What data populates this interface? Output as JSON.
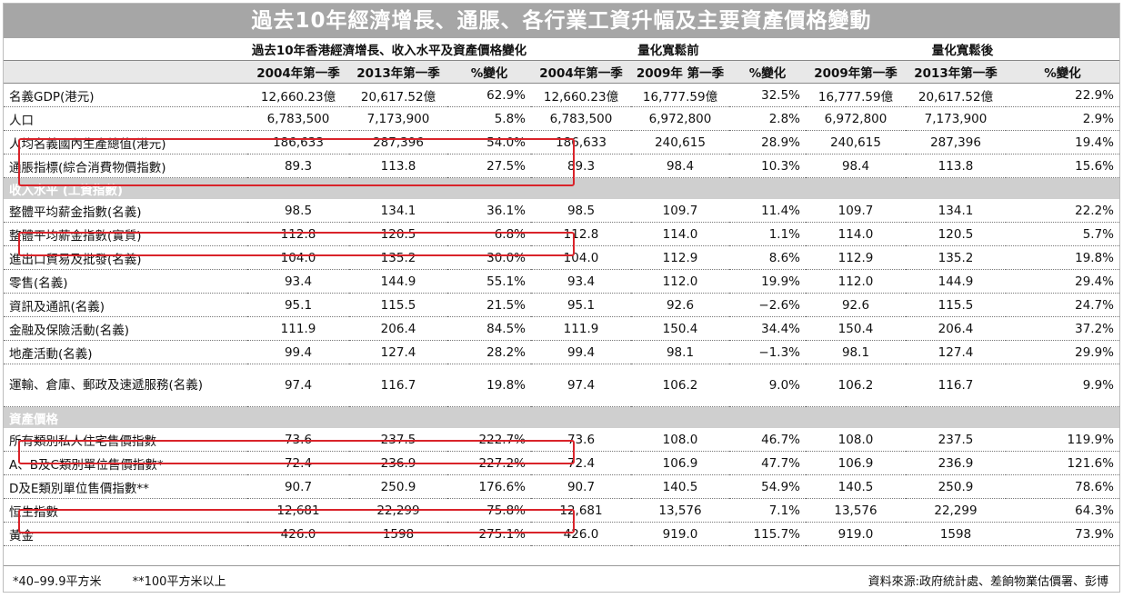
{
  "title": "過去10年經濟增長、通脹、各行業工資升幅及主要資產價格變動",
  "group_headers": [
    "過去10年香港經濟增長、收入水平及資產價格變化",
    "量化寬鬆前",
    "量化寬鬆後"
  ],
  "sub_headers": [
    "2004年第一季",
    "2013年第一季",
    "%變化",
    "2004年第一季",
    "2009年 第一季",
    "%變化",
    "2009年第一季",
    "2013年第一季",
    "%變化"
  ],
  "rows_top": [
    {
      "label": "名義GDP(港元)",
      "cells": [
        "12,660.23億",
        "20,617.52億",
        "62.9%",
        "12,660.23億",
        "16,777.59億",
        "32.5%",
        "16,777.59億",
        "20,617.52億",
        "22.9%"
      ]
    },
    {
      "label": "人口",
      "cells": [
        "6,783,500",
        "7,173,900",
        "5.8%",
        "6,783,500",
        "6,972,800",
        "2.8%",
        "6,972,800",
        "7,173,900",
        "2.9%"
      ]
    },
    {
      "label": "人均名義國內生產總值(港元)",
      "cells": [
        "186,633",
        "287,396",
        "54.0%",
        "186,633",
        "240,615",
        "28.9%",
        "240,615",
        "287,396",
        "19.4%"
      ]
    },
    {
      "label": "通脹指標(綜合消費物價指數)",
      "cells": [
        "89.3",
        "113.8",
        "27.5%",
        "89.3",
        "98.4",
        "10.3%",
        "98.4",
        "113.8",
        "15.6%"
      ]
    }
  ],
  "section_income": "收入水平 (工資指數)",
  "rows_income": [
    {
      "label": "整體平均薪金指數(名義)",
      "cells": [
        "98.5",
        "134.1",
        "36.1%",
        "98.5",
        "109.7",
        "11.4%",
        "109.7",
        "134.1",
        "22.2%"
      ]
    },
    {
      "label": "整體平均薪金指數(實質)",
      "cells": [
        "112.8",
        "120.5",
        "6.8%",
        "112.8",
        "114.0",
        "1.1%",
        "114.0",
        "120.5",
        "5.7%"
      ]
    },
    {
      "label": "進出口貿易及批發(名義)",
      "cells": [
        "104.0",
        "135.2",
        "30.0%",
        "104.0",
        "112.9",
        "8.6%",
        "112.9",
        "135.2",
        "19.8%"
      ]
    },
    {
      "label": "零售(名義)",
      "cells": [
        "93.4",
        "144.9",
        "55.1%",
        "93.4",
        "112.0",
        "19.9%",
        "112.0",
        "144.9",
        "29.4%"
      ]
    },
    {
      "label": "資訊及通訊(名義)",
      "cells": [
        "95.1",
        "115.5",
        "21.5%",
        "95.1",
        "92.6",
        "−2.6%",
        "92.6",
        "115.5",
        "24.7%"
      ]
    },
    {
      "label": "金融及保險活動(名義)",
      "cells": [
        "111.9",
        "206.4",
        "84.5%",
        "111.9",
        "150.4",
        "34.4%",
        "150.4",
        "206.4",
        "37.2%"
      ]
    },
    {
      "label": "地產活動(名義)",
      "cells": [
        "99.4",
        "127.4",
        "28.2%",
        "99.4",
        "98.1",
        "−1.3%",
        "98.1",
        "127.4",
        "29.9%"
      ]
    },
    {
      "label": "運輸、倉庫、郵政及速遞服務(名義)",
      "cells": [
        "97.4",
        "116.7",
        "19.8%",
        "97.4",
        "106.2",
        "9.0%",
        "106.2",
        "116.7",
        "9.9%"
      ]
    }
  ],
  "section_assets": "資產價格",
  "rows_assets": [
    {
      "label": "所有類別私人住宅售價指數",
      "cells": [
        "73.6",
        "237.5",
        "222.7%",
        "73.6",
        "108.0",
        "46.7%",
        "108.0",
        "237.5",
        "119.9%"
      ]
    },
    {
      "label": "A、B及C類別單位售價指數*",
      "cells": [
        "72.4",
        "236.9",
        "227.2%",
        "72.4",
        "106.9",
        "47.7%",
        "106.9",
        "236.9",
        "121.6%"
      ]
    },
    {
      "label": "D及E類別單位售價指數**",
      "cells": [
        "90.7",
        "250.9",
        "176.6%",
        "90.7",
        "140.5",
        "54.9%",
        "140.5",
        "250.9",
        "78.6%"
      ]
    },
    {
      "label": "恒生指數",
      "cells": [
        "12,681",
        "22,299",
        "75.8%",
        "12,681",
        "13,576",
        "7.1%",
        "13,576",
        "22,299",
        "64.3%"
      ]
    },
    {
      "label": "黃金",
      "cells": [
        "426.0",
        "1598",
        "275.1%",
        "426.0",
        "919.0",
        "115.7%",
        "919.0",
        "1598",
        "73.9%"
      ]
    }
  ],
  "footer": {
    "note1": "*40–99.9平方米",
    "note2": "**100平方米以上",
    "source": "資料來源:政府統計處、差餉物業估價署、彭博"
  },
  "colors": {
    "title_bg": "#a6a6a6",
    "section_bg": "#cfcfcf",
    "subhead_bg": "#e8e8e8",
    "highlight": "#d9232a"
  }
}
